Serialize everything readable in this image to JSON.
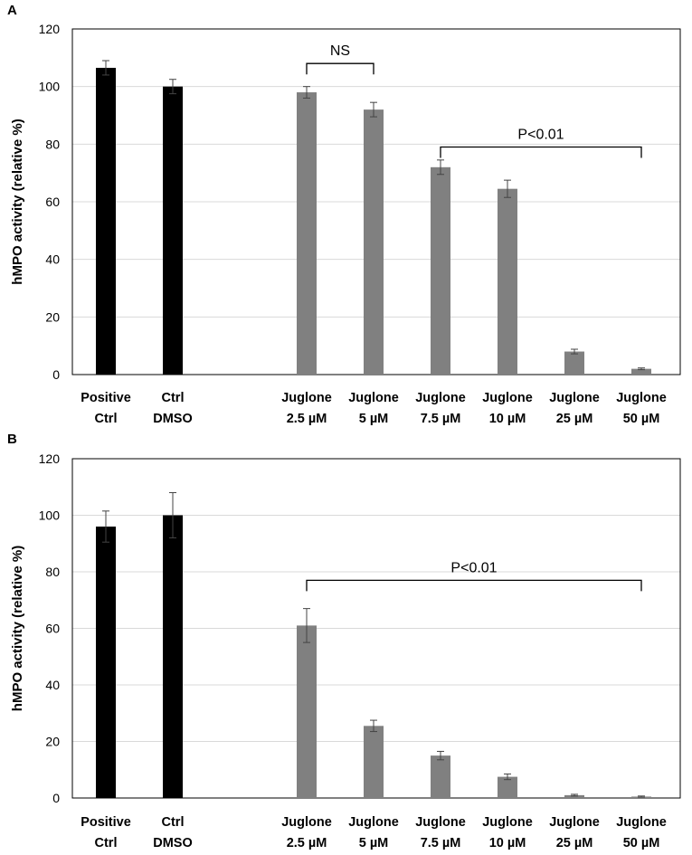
{
  "chart_data": [
    {
      "type": "bar",
      "panel_label": "A",
      "ylabel": "hMPO activity (relative %)",
      "ylim": [
        0,
        120
      ],
      "yticks": [
        0,
        20,
        40,
        60,
        80,
        100,
        120
      ],
      "grid": true,
      "categories": [
        [
          "Positive",
          "Ctrl"
        ],
        [
          "Ctrl",
          "DMSO"
        ],
        [
          "",
          ""
        ],
        [
          "Juglone",
          "2.5 µM"
        ],
        [
          "Juglone",
          "5 µM"
        ],
        [
          "Juglone",
          "7.5 µM"
        ],
        [
          "Juglone",
          "10 µM"
        ],
        [
          "Juglone",
          "25 µM"
        ],
        [
          "Juglone",
          "50 µM"
        ]
      ],
      "values": [
        106.5,
        100,
        null,
        98,
        92,
        72,
        64.5,
        8,
        2
      ],
      "errors": [
        2.5,
        2.5,
        null,
        2,
        2.5,
        2.5,
        3,
        0.8,
        0.3
      ],
      "bar_colors": [
        "#000000",
        "#000000",
        null,
        "#808080",
        "#808080",
        "#808080",
        "#808080",
        "#808080",
        "#808080"
      ],
      "annotations": [
        {
          "text": "NS",
          "from_category": 3,
          "to_category": 4,
          "y": 108
        },
        {
          "text": "P<0.01",
          "from_category": 5,
          "to_category": 8,
          "y": 79
        }
      ]
    },
    {
      "type": "bar",
      "panel_label": "B",
      "ylabel": "hMPO activity (relative %)",
      "ylim": [
        0,
        120
      ],
      "yticks": [
        0,
        20,
        40,
        60,
        80,
        100,
        120
      ],
      "grid": true,
      "categories": [
        [
          "Positive",
          "Ctrl"
        ],
        [
          "Ctrl",
          "DMSO"
        ],
        [
          "",
          ""
        ],
        [
          "Juglone",
          "2.5 µM"
        ],
        [
          "Juglone",
          "5 µM"
        ],
        [
          "Juglone",
          "7.5 µM"
        ],
        [
          "Juglone",
          "10 µM"
        ],
        [
          "Juglone",
          "25 µM"
        ],
        [
          "Juglone",
          "50 µM"
        ]
      ],
      "values": [
        96,
        100,
        null,
        61,
        25.5,
        15,
        7.5,
        1,
        0.5
      ],
      "errors": [
        5.5,
        8,
        null,
        6,
        2,
        1.5,
        1,
        0.3,
        0.2
      ],
      "bar_colors": [
        "#000000",
        "#000000",
        null,
        "#808080",
        "#808080",
        "#808080",
        "#808080",
        "#808080",
        "#808080"
      ],
      "annotations": [
        {
          "text": "P<0.01",
          "from_category": 3,
          "to_category": 8,
          "y": 77
        }
      ]
    }
  ]
}
